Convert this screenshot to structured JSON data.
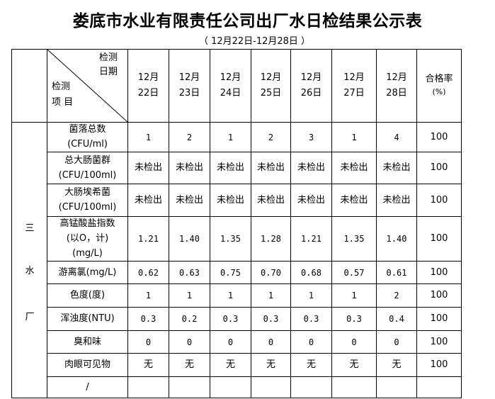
{
  "title": "娄底市水业有限责任公司出厂水日检结果公示表",
  "subtitle": "（ 12月22日-12月28日  ）",
  "header": {
    "date_label_1": "检测",
    "date_label_2": "日期",
    "item_label_1": "检测",
    "item_label_2": "项 目",
    "dates": [
      [
        "12月",
        "22日"
      ],
      [
        "12月",
        "23日"
      ],
      [
        "12月",
        "24日"
      ],
      [
        "12月",
        "25日"
      ],
      [
        "12月",
        "26日"
      ],
      [
        "12月",
        "27日"
      ],
      [
        "12月",
        "28日"
      ]
    ],
    "rate_1": "合格率",
    "rate_2": "(%)"
  },
  "plant": [
    "三",
    "水",
    "厂"
  ],
  "rows": [
    {
      "item": [
        "菌落总数",
        "(CFU/ml)"
      ],
      "values": [
        "1",
        "2",
        "1",
        "2",
        "3",
        "1",
        "4"
      ],
      "rate": "100"
    },
    {
      "item": [
        "总大肠菌群",
        "(CFU/100ml)"
      ],
      "values": [
        "未检出",
        "未检出",
        "未检出",
        "未检出",
        "未检出",
        "未检出",
        "未检出"
      ],
      "rate": "100"
    },
    {
      "item": [
        "大肠埃希菌",
        "(CFU/100ml)"
      ],
      "values": [
        "未检出",
        "未检出",
        "未检出",
        "未检出",
        "未检出",
        "未检出",
        "未检出"
      ],
      "rate": "100"
    },
    {
      "item": [
        "高锰酸盐指数",
        "(以O，计)",
        "(mg/L)"
      ],
      "values": [
        "1.21",
        "1.40",
        "1.35",
        "1.28",
        "1.21",
        "1.35",
        "1.40"
      ],
      "rate": "100"
    },
    {
      "item": [
        "游离氯(mg/L)"
      ],
      "values": [
        "0.62",
        "0.63",
        "0.75",
        "0.70",
        "0.68",
        "0.57",
        "0.61"
      ],
      "rate": "100"
    },
    {
      "item": [
        "色度(度)"
      ],
      "values": [
        "1",
        "1",
        "1",
        "1",
        "1",
        "1",
        "2"
      ],
      "rate": "100"
    },
    {
      "item": [
        "浑浊度(NTU)"
      ],
      "values": [
        "0.3",
        "0.2",
        "0.3",
        "0.3",
        "0.3",
        "0.3",
        "0.4"
      ],
      "rate": "100"
    },
    {
      "item": [
        "臭和味"
      ],
      "values": [
        "0",
        "0",
        "0",
        "0",
        "0",
        "0",
        "0"
      ],
      "rate": "100"
    },
    {
      "item": [
        "肉眼可见物"
      ],
      "values": [
        "无",
        "无",
        "无",
        "无",
        "无",
        "无",
        "无"
      ],
      "rate": "100"
    },
    {
      "item": [
        "/"
      ],
      "values": [
        "",
        "",
        "",
        "",
        "",
        "",
        ""
      ],
      "rate": ""
    }
  ]
}
